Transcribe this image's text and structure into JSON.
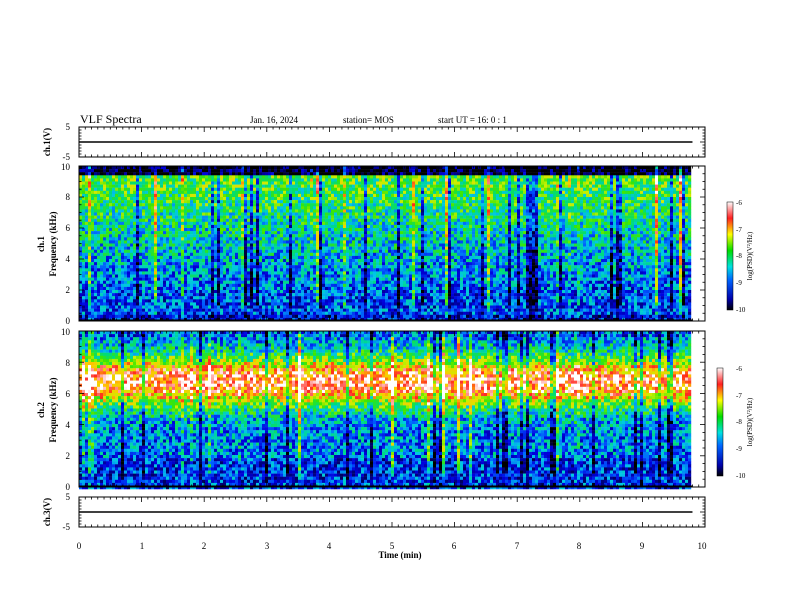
{
  "header": {
    "title": "VLF Spectra",
    "date": "Jan. 16, 2024",
    "station": "station= MOS",
    "start": "start UT =  16: 0 : 1"
  },
  "chart_data": [
    {
      "type": "line",
      "ylabel": "ch.1(V)",
      "yticks": [
        "5",
        "-5"
      ],
      "ylim": [
        -5,
        5
      ],
      "x": [
        0,
        9.8
      ],
      "values": [
        0,
        0
      ]
    },
    {
      "type": "heatmap",
      "ylabel": "ch.1\nFrequency (kHz)",
      "ylabel_line1": "ch.1",
      "ylabel_line2": "Frequency (kHz)",
      "yticks": [
        "0",
        "2",
        "4",
        "6",
        "8",
        "10"
      ],
      "ylim": [
        0,
        10
      ],
      "xlim": [
        0,
        9.8
      ],
      "colorbar": {
        "label": "log(PSD)(V²/Hz)",
        "ticks": [
          "-6",
          "-7",
          "-8",
          "-9",
          "-10"
        ],
        "range": [
          -10,
          -6
        ]
      }
    },
    {
      "type": "heatmap",
      "ylabel": "ch.2\nFrequency (kHz)",
      "ylabel_line1": "ch.2",
      "ylabel_line2": "Frequency (kHz)",
      "yticks": [
        "0",
        "2",
        "4",
        "6",
        "8",
        "10"
      ],
      "ylim": [
        0,
        10
      ],
      "xlim": [
        0,
        9.8
      ],
      "colorbar": {
        "label": "log(PSD)(V²/Hz)",
        "ticks": [
          "-6",
          "-7",
          "-8",
          "-9",
          "-10"
        ],
        "range": [
          -10,
          -6
        ]
      }
    },
    {
      "type": "line",
      "ylabel": "ch.3(V)",
      "yticks": [
        "5",
        "-5"
      ],
      "ylim": [
        -5,
        5
      ],
      "x": [
        0,
        9.8
      ],
      "values": [
        0,
        0
      ]
    }
  ],
  "xaxis": {
    "label": "Time (min)",
    "ticks": [
      "0",
      "1",
      "2",
      "3",
      "4",
      "5",
      "6",
      "7",
      "8",
      "9",
      "10"
    ],
    "xlim": [
      0,
      10
    ]
  }
}
